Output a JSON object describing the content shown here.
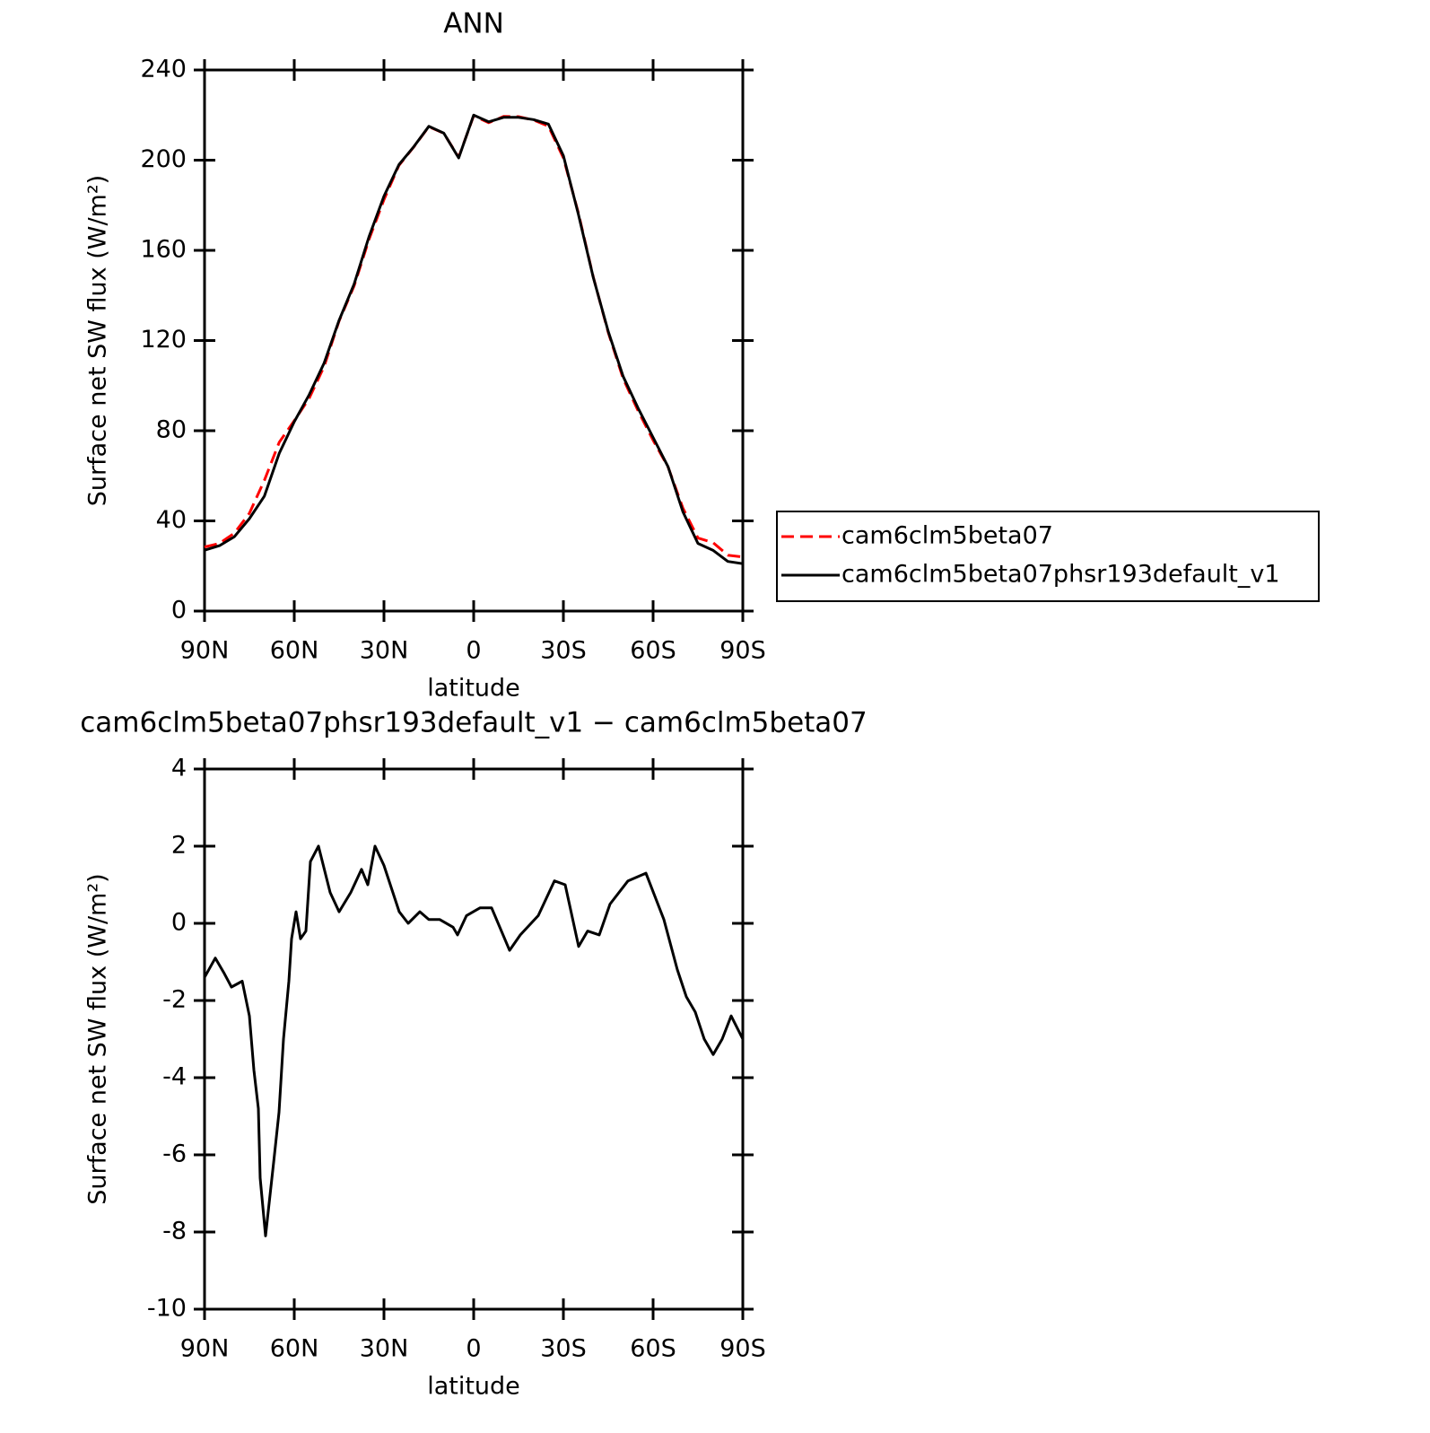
{
  "chart_data": [
    {
      "type": "line",
      "title": "ANN",
      "x_label": "latitude",
      "y_label": "Surface net SW flux (W/m²)",
      "x": [
        90,
        85,
        80,
        75,
        70,
        65,
        60,
        55,
        50,
        45,
        40,
        35,
        30,
        25,
        20,
        15,
        10,
        5,
        0,
        -5,
        -10,
        -15,
        -20,
        -25,
        -30,
        -35,
        -40,
        -45,
        -50,
        -55,
        -60,
        -65,
        -70,
        -75,
        -80,
        -85,
        -90
      ],
      "series": [
        {
          "name": "cam6clm5beta07",
          "color": "#ff0000",
          "dashed": true,
          "values": [
            28.4,
            30,
            34.6,
            43.4,
            58,
            74.9,
            84.4,
            94.4,
            108.5,
            128.7,
            144.2,
            164.8,
            182.5,
            197.7,
            205.9,
            214.9,
            211.9,
            201.3,
            219.7,
            216.6,
            219.4,
            219.3,
            217.8,
            215.1,
            201,
            176.6,
            148.2,
            123.6,
            103,
            88.8,
            75.8,
            63.9,
            45.6,
            32.4,
            30.4,
            24.8,
            24
          ]
        },
        {
          "name": "cam6clm5beta07phsr193default_v1",
          "color": "#000000",
          "dashed": false,
          "values": [
            27,
            29,
            33,
            41,
            51,
            70,
            84,
            96,
            110,
            129,
            145,
            166,
            184,
            198,
            206,
            215,
            212,
            201,
            220,
            217,
            219,
            219,
            218,
            216,
            202,
            176,
            148,
            124,
            104,
            90,
            77,
            64,
            44,
            30,
            27,
            22,
            21
          ]
        }
      ],
      "xlim": [
        90,
        -90
      ],
      "xticks": [
        {
          "value": 90,
          "label": "90N"
        },
        {
          "value": 60,
          "label": "60N"
        },
        {
          "value": 30,
          "label": "30N"
        },
        0,
        {
          "value": -30,
          "label": "30S"
        },
        {
          "value": -60,
          "label": "60S"
        },
        {
          "value": -90,
          "label": "90S"
        }
      ],
      "ylim": [
        0,
        240
      ],
      "yticks": [
        0,
        40,
        80,
        120,
        160,
        200,
        240
      ],
      "legend": "right"
    },
    {
      "type": "line",
      "title": "cam6clm5beta07phsr193default_v1 − cam6clm5beta07",
      "x_label": "latitude",
      "y_label": "Surface net SW flux (W/m²)",
      "x": [
        90,
        86.4,
        83.4,
        81,
        77.4,
        75,
        73.5,
        72,
        71.4,
        69.6,
        66.9,
        65.1,
        63.6,
        61.8,
        60.9,
        59.4,
        57.9,
        56.1,
        54.6,
        51.9,
        48,
        45,
        41.1,
        37.5,
        35.4,
        33,
        30,
        24.9,
        21.9,
        18,
        15,
        11.4,
        6.9,
        5.4,
        2.4,
        -2.1,
        -6,
        -12,
        -15.6,
        -21.6,
        -27,
        -30.6,
        -35.1,
        -38.1,
        -42,
        -45.6,
        -51.6,
        -57.6,
        -63.6,
        -68.1,
        -71.1,
        -74.1,
        -77.1,
        -80.1,
        -83.1,
        -86.1,
        -90
      ],
      "series": [
        {
          "color": "#000000",
          "dashed": false,
          "values": [
            -1.4,
            -0.9,
            -1.3,
            -1.65,
            -1.5,
            -2.4,
            -3.8,
            -4.8,
            -6.6,
            -8.1,
            -6.2,
            -4.9,
            -3,
            -1.5,
            -0.4,
            0.3,
            -0.4,
            -0.2,
            1.6,
            2,
            0.8,
            0.3,
            0.8,
            1.4,
            1,
            2,
            1.5,
            0.3,
            0,
            0.3,
            0.1,
            0.1,
            -0.1,
            -0.3,
            0.2,
            0.4,
            0.4,
            -0.7,
            -0.3,
            0.2,
            1.1,
            1,
            -0.6,
            -0.2,
            -0.3,
            0.5,
            1.1,
            1.3,
            0.1,
            -1.2,
            -1.9,
            -2.3,
            -3,
            -3.4,
            -3,
            -2.4,
            -3
          ]
        }
      ],
      "xlim": [
        90,
        -90
      ],
      "xticks": [
        {
          "value": 90,
          "label": "90N"
        },
        {
          "value": 60,
          "label": "60N"
        },
        {
          "value": 30,
          "label": "30N"
        },
        0,
        {
          "value": -30,
          "label": "30S"
        },
        {
          "value": -60,
          "label": "60S"
        },
        {
          "value": -90,
          "label": "90S"
        }
      ],
      "ylim": [
        -10,
        4
      ],
      "yticks": [
        -10,
        -8,
        -6,
        -4,
        -2,
        0,
        2,
        4
      ]
    }
  ]
}
